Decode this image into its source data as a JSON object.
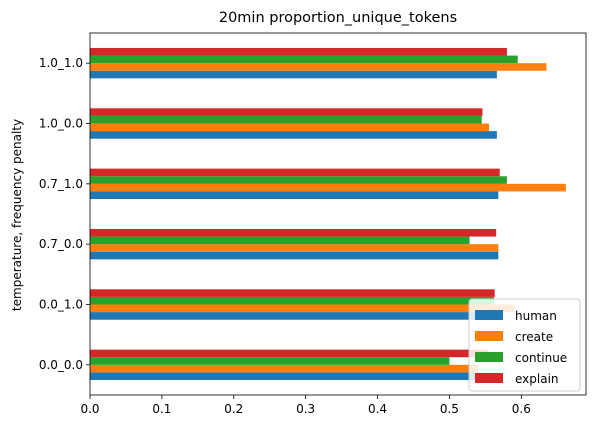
{
  "chart_data": {
    "type": "bar",
    "orientation": "horizontal",
    "title": "20min proportion_unique_tokens",
    "xlabel": "",
    "ylabel": "temperature, frequency penalty",
    "xlim": [
      0,
      0.69
    ],
    "xticks": [
      "0.0",
      "0.1",
      "0.2",
      "0.3",
      "0.4",
      "0.5",
      "0.6"
    ],
    "categories": [
      "0.0_0.0",
      "0.0_1.0",
      "0.7_0.0",
      "0.7_1.0",
      "1.0_0.0",
      "1.0_1.0"
    ],
    "series": [
      {
        "name": "human",
        "color": "#1f77b4",
        "values": [
          0.567,
          0.567,
          0.568,
          0.568,
          0.566,
          0.566
        ]
      },
      {
        "name": "create",
        "color": "#ff7f0e",
        "values": [
          0.54,
          0.59,
          0.568,
          0.662,
          0.555,
          0.635
        ]
      },
      {
        "name": "continue",
        "color": "#2ca02c",
        "values": [
          0.5,
          0.562,
          0.528,
          0.58,
          0.545,
          0.595
        ]
      },
      {
        "name": "explain",
        "color": "#d62728",
        "values": [
          0.553,
          0.563,
          0.565,
          0.57,
          0.546,
          0.58
        ]
      }
    ],
    "legend": "bottom-right",
    "grid": false
  }
}
